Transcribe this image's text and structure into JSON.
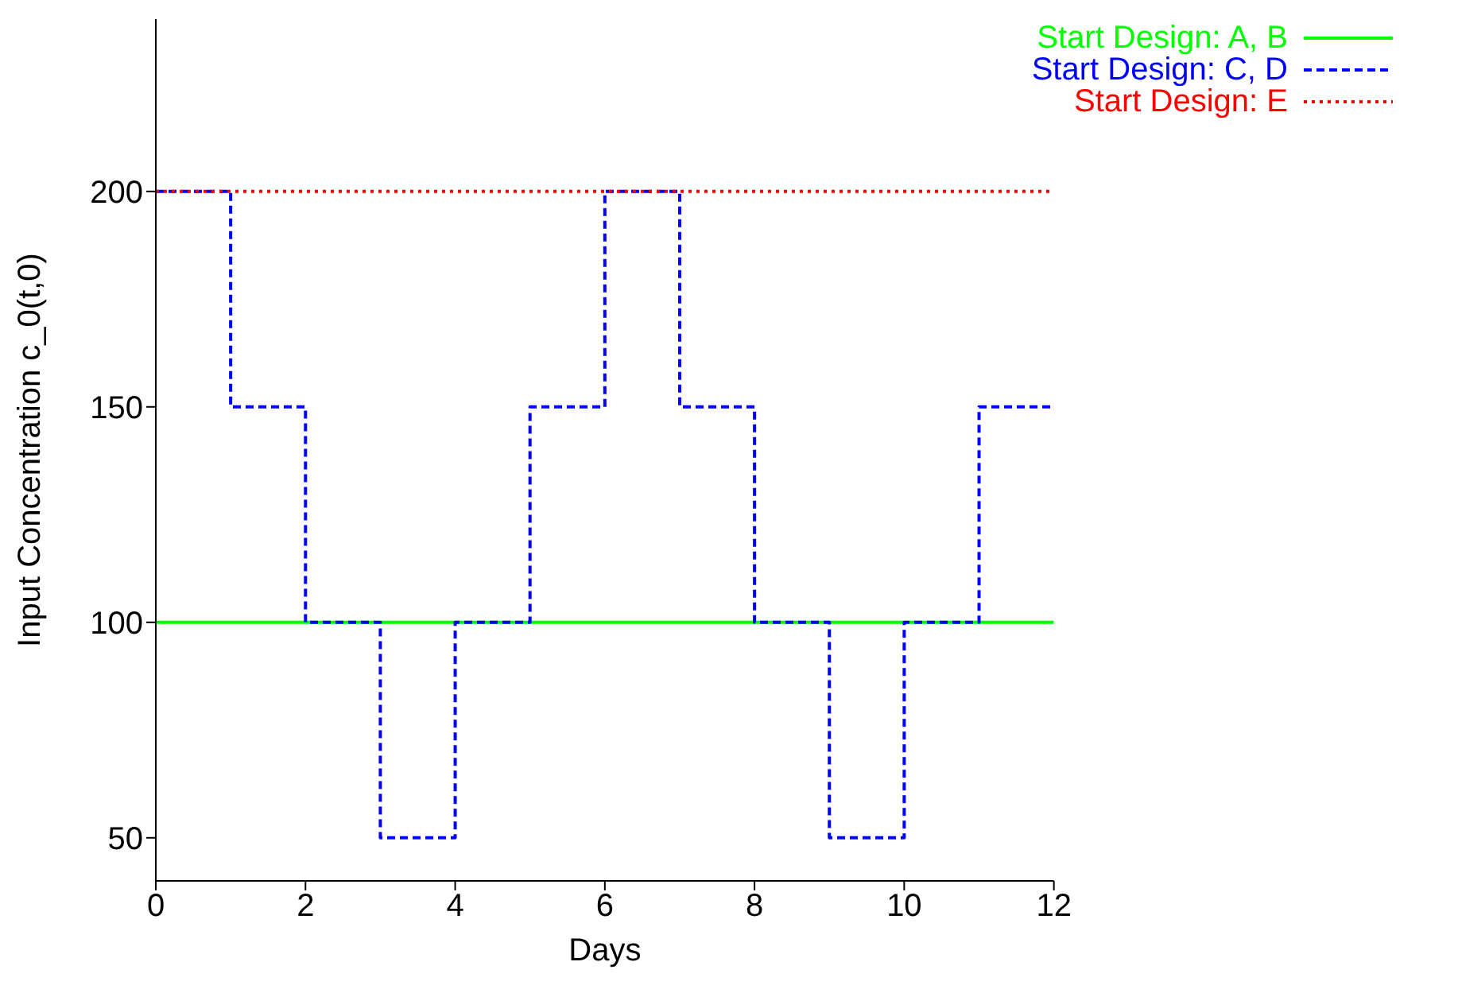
{
  "chart_data": {
    "type": "step",
    "xlabel": "Days",
    "ylabel": "Input Concentration c_0(t,0)",
    "xlim": [
      0,
      12
    ],
    "ylim": [
      40,
      240
    ],
    "xticks": [
      0,
      2,
      4,
      6,
      8,
      10,
      12
    ],
    "yticks": [
      50,
      100,
      150,
      200
    ],
    "grid": false,
    "legend": "top right",
    "marker": "none",
    "series": [
      {
        "name": "Start Design: A, B",
        "color": "#00ff00",
        "line_style": "solid",
        "x": [
          0,
          12
        ],
        "values": [
          100,
          100
        ]
      },
      {
        "name": "Start Design: C, D",
        "color": "#0000ff",
        "line_style": "dashed",
        "x": [
          0,
          1,
          2,
          3,
          4,
          5,
          6,
          7,
          8,
          9,
          10,
          11,
          12
        ],
        "values": [
          200,
          150,
          100,
          50,
          100,
          150,
          200,
          150,
          100,
          50,
          100,
          150,
          150
        ]
      },
      {
        "name": "Start Design: E",
        "color": "#ff0000",
        "line_style": "dotted",
        "x": [
          0,
          12
        ],
        "values": [
          200,
          200
        ]
      }
    ]
  }
}
